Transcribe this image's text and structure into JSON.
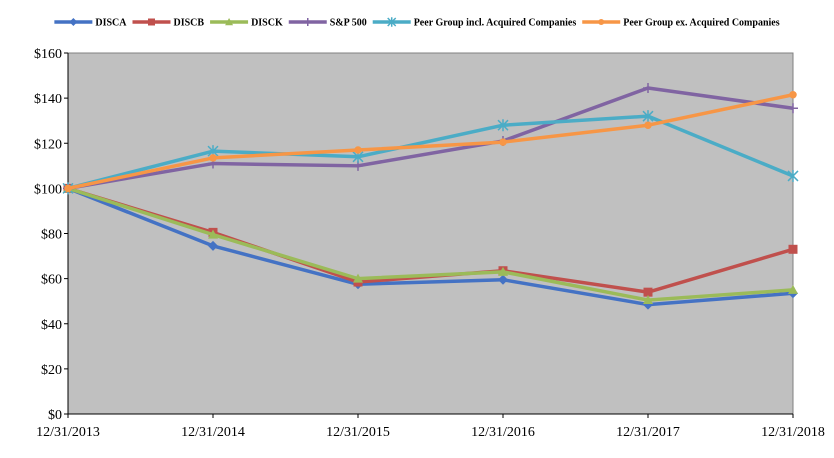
{
  "chart_data": {
    "type": "line",
    "title": "",
    "xlabel": "",
    "ylabel": "",
    "categories": [
      "12/31/2013",
      "12/31/2014",
      "12/31/2015",
      "12/31/2016",
      "12/31/2017",
      "12/31/2018"
    ],
    "ylim": [
      0,
      160
    ],
    "yticks": [
      "$0",
      "$20",
      "$40",
      "$60",
      "$80",
      "$100",
      "$120",
      "$140",
      "$160"
    ],
    "grid": false,
    "legend_position": "top",
    "plot_background": "#c0c0c0",
    "series": [
      {
        "name": "DISCA",
        "color": "#4472c4",
        "marker": "diamond",
        "values": [
          100,
          74.5,
          57.5,
          59.5,
          48.5,
          53.5
        ]
      },
      {
        "name": "DISCB",
        "color": "#c0504d",
        "marker": "square",
        "values": [
          100,
          80.5,
          58.5,
          63.5,
          54,
          73
        ]
      },
      {
        "name": "DISCK",
        "color": "#9bbb59",
        "marker": "triangle",
        "values": [
          100,
          79.5,
          60,
          63,
          50.5,
          55
        ]
      },
      {
        "name": "S&P 500",
        "color": "#8064a2",
        "marker": "plus",
        "values": [
          100,
          111,
          110,
          121,
          144.5,
          135.5
        ]
      },
      {
        "name": "Peer Group incl. Acquired Companies",
        "color": "#4bacc6",
        "marker": "x",
        "values": [
          100,
          116.5,
          114,
          128,
          132,
          105.5
        ]
      },
      {
        "name": "Peer Group ex. Acquired Companies",
        "color": "#f79646",
        "marker": "circle",
        "values": [
          100,
          113.5,
          117,
          120.5,
          128,
          141.5
        ]
      }
    ]
  }
}
